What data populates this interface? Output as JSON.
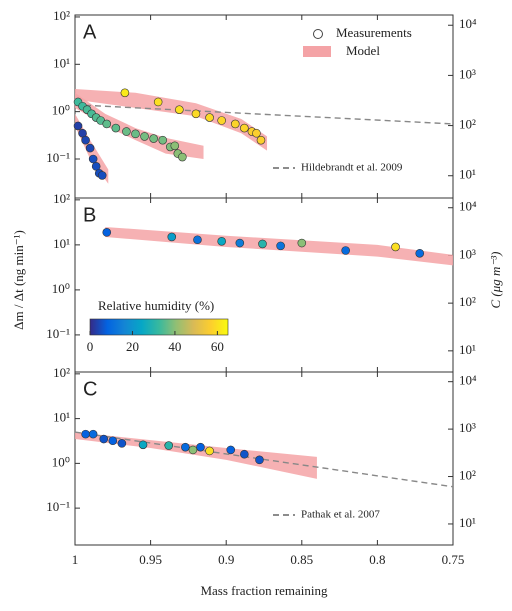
{
  "chart_data": [
    {
      "type": "scatter",
      "label": "A",
      "log_y": true,
      "xlim": [
        1,
        0.75
      ],
      "xticks": [
        1,
        0.95,
        0.9,
        0.85,
        0.8,
        0.75
      ],
      "ylim": [
        0.015,
        110
      ],
      "yticks": [
        {
          "value": 0.1,
          "label": "10⁻¹"
        },
        {
          "value": 1,
          "label": "10⁰"
        },
        {
          "value": 10,
          "label": "10¹"
        },
        {
          "value": 100,
          "label": "10²"
        }
      ],
      "y2lim": [
        3.6,
        16000
      ],
      "y2ticks": [
        {
          "value": 10,
          "label": "10¹"
        },
        {
          "value": 100,
          "label": "10²"
        },
        {
          "value": 1000,
          "label": "10³"
        },
        {
          "value": 10000,
          "label": "10⁴"
        }
      ],
      "legend": {
        "measurements": "Measurements",
        "model": "Model"
      },
      "series": [
        {
          "x": [
            0.998,
            0.995,
            0.993,
            0.99,
            0.988,
            0.986,
            0.984,
            0.982
          ],
          "values": [
            0.5,
            0.35,
            0.25,
            0.17,
            0.1,
            0.07,
            0.05,
            0.045
          ],
          "rh": [
            3,
            3,
            4,
            4,
            5,
            5,
            5,
            5
          ]
        },
        {
          "x": [
            0.998,
            0.995,
            0.992,
            0.989,
            0.986,
            0.983,
            0.979,
            0.973,
            0.966,
            0.96,
            0.954,
            0.948,
            0.942,
            0.937,
            0.934,
            0.932,
            0.929
          ],
          "values": [
            1.6,
            1.3,
            1.1,
            0.9,
            0.75,
            0.65,
            0.55,
            0.45,
            0.38,
            0.34,
            0.3,
            0.27,
            0.25,
            0.18,
            0.19,
            0.13,
            0.11
          ],
          "rh": [
            33,
            33,
            34,
            34,
            35,
            35,
            36,
            36,
            37,
            37,
            38,
            38,
            38,
            39,
            40,
            40,
            40
          ]
        },
        {
          "x": [
            0.967,
            0.945,
            0.931,
            0.92,
            0.911,
            0.903,
            0.894,
            0.888,
            0.883,
            0.88,
            0.877
          ],
          "values": [
            2.5,
            1.6,
            1.1,
            0.9,
            0.75,
            0.65,
            0.55,
            0.45,
            0.38,
            0.35,
            0.25
          ],
          "rh": [
            62,
            60,
            60,
            59,
            59,
            58,
            58,
            58,
            57,
            57,
            57
          ]
        }
      ],
      "model": [
        {
          "x": [
            1,
            0.99,
            0.978
          ],
          "upper": [
            0.9,
            0.25,
            0.06
          ],
          "lower": [
            0.5,
            0.1,
            0.03
          ]
        },
        {
          "x": [
            1,
            0.98,
            0.96,
            0.94,
            0.915
          ],
          "upper": [
            2.5,
            0.9,
            0.45,
            0.28,
            0.19
          ],
          "lower": [
            1.2,
            0.5,
            0.25,
            0.13,
            0.1
          ]
        },
        {
          "x": [
            1,
            0.96,
            0.92,
            0.89,
            0.873
          ],
          "upper": [
            3,
            2.5,
            1.5,
            0.7,
            0.3
          ],
          "lower": [
            1.8,
            1.2,
            0.8,
            0.35,
            0.15
          ]
        }
      ],
      "reference": {
        "label": "Hildebrandt et al. 2009",
        "x": [
          1,
          0.75
        ],
        "values": [
          1.4,
          0.55
        ]
      }
    },
    {
      "type": "scatter",
      "label": "B",
      "log_y": true,
      "xlim": [
        1,
        0.75
      ],
      "xticks": [
        1,
        0.95,
        0.9,
        0.85,
        0.8,
        0.75
      ],
      "ylim": [
        0.015,
        110
      ],
      "yticks": [
        {
          "value": 0.1,
          "label": "10⁻¹"
        },
        {
          "value": 1,
          "label": "10⁰"
        },
        {
          "value": 10,
          "label": "10¹"
        },
        {
          "value": 100,
          "label": "10²"
        }
      ],
      "y2lim": [
        3.6,
        16000
      ],
      "y2ticks": [
        {
          "value": 10,
          "label": "10¹"
        },
        {
          "value": 100,
          "label": "10²"
        },
        {
          "value": 1000,
          "label": "10³"
        },
        {
          "value": 10000,
          "label": "10⁴"
        }
      ],
      "ylabel": "Δm / Δt (ng min⁻¹)",
      "y2label": "C (μg m⁻³)",
      "series": [
        {
          "x": [
            0.979,
            0.936,
            0.919,
            0.903,
            0.891,
            0.876,
            0.864,
            0.85,
            0.821,
            0.788,
            0.772
          ],
          "values": [
            19,
            15,
            13,
            12,
            11,
            10.5,
            9.5,
            11,
            7.5,
            9,
            6.5
          ],
          "rh": [
            8,
            22,
            12,
            25,
            14,
            30,
            12,
            40,
            10,
            60,
            10
          ]
        }
      ],
      "model": [
        {
          "x": [
            0.98,
            0.9,
            0.8,
            0.75
          ],
          "upper": [
            25,
            16,
            10,
            6
          ],
          "lower": [
            15,
            9,
            5.5,
            3.5
          ]
        }
      ],
      "colorbar": {
        "label": "Relative humidity (%)",
        "lim": [
          0,
          65
        ],
        "ticks": [
          0,
          20,
          40,
          60
        ],
        "colormap": [
          "#352a87",
          "#0363e1",
          "#1485d4",
          "#06a7c6",
          "#38b99e",
          "#92bf73",
          "#d9ba56",
          "#fcce2e",
          "#f9fb0e"
        ]
      }
    },
    {
      "type": "scatter",
      "label": "C",
      "log_y": true,
      "xlim": [
        1,
        0.75
      ],
      "xticks": [
        1,
        0.95,
        0.9,
        0.85,
        0.8,
        0.75
      ],
      "ylim": [
        0.015,
        110
      ],
      "yticks": [
        {
          "value": 0.1,
          "label": "10⁻¹"
        },
        {
          "value": 1,
          "label": "10⁰"
        },
        {
          "value": 10,
          "label": "10¹"
        },
        {
          "value": 100,
          "label": "10²"
        }
      ],
      "y2lim": [
        3.6,
        16000
      ],
      "y2ticks": [
        {
          "value": 10,
          "label": "10¹"
        },
        {
          "value": 100,
          "label": "10²"
        },
        {
          "value": 1000,
          "label": "10³"
        },
        {
          "value": 10000,
          "label": "10⁴"
        }
      ],
      "xlabel": "Mass fraction remaining",
      "series": [
        {
          "x": [
            0.993,
            0.988,
            0.981,
            0.975,
            0.969,
            0.955,
            0.938,
            0.927,
            0.922,
            0.917,
            0.911,
            0.897,
            0.888,
            0.878
          ],
          "values": [
            4.5,
            4.5,
            3.5,
            3.2,
            2.8,
            2.6,
            2.5,
            2.3,
            2,
            2.3,
            1.9,
            2,
            1.6,
            1.2
          ],
          "rh": [
            8,
            10,
            6,
            8,
            6,
            25,
            30,
            10,
            40,
            8,
            60,
            8,
            6,
            6
          ]
        }
      ],
      "model": [
        {
          "x": [
            1,
            0.95,
            0.9,
            0.84
          ],
          "upper": [
            5,
            3.3,
            2.2,
            1.4
          ],
          "lower": [
            3.5,
            2.2,
            1.2,
            0.45
          ]
        }
      ],
      "reference": {
        "label": "Pathak et al. 2007",
        "x": [
          1,
          0.75
        ],
        "values": [
          5,
          0.3
        ]
      }
    }
  ]
}
